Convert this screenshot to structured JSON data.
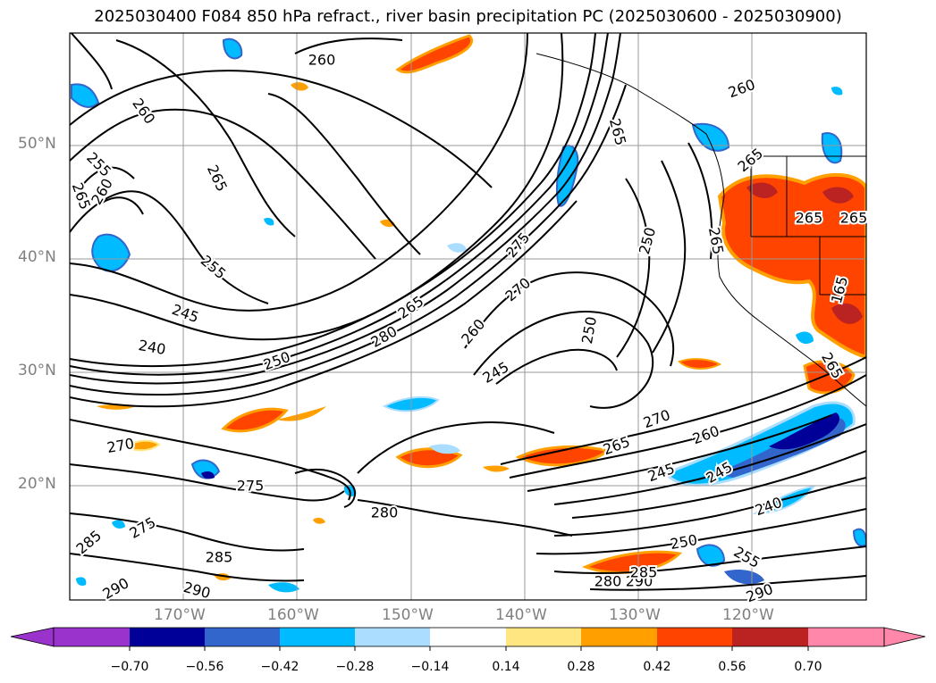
{
  "title": "2025030400 F084 850 hPa refract., river basin precipitation PC (2025030600 - 2025030900)",
  "lat_labels": [
    "50°N",
    "40°N",
    "30°N",
    "20°N"
  ],
  "lon_labels": [
    "170°W",
    "160°W",
    "150°W",
    "140°W",
    "130°W",
    "120°W"
  ],
  "contour_labels": [
    "260",
    "260",
    "255",
    "260",
    "265",
    "265",
    "265",
    "265",
    "265",
    "255",
    "245",
    "240",
    "250",
    "280",
    "265",
    "275",
    "270",
    "260",
    "245",
    "250",
    "250",
    "260",
    "270",
    "260",
    "265",
    "245",
    "245",
    "240",
    "250",
    "255",
    "270",
    "275",
    "285",
    "275",
    "285",
    "290",
    "290",
    "280",
    "290",
    "290",
    "285",
    "280",
    "265",
    "265",
    "265",
    "165"
  ],
  "colorbar": {
    "tick_labels": [
      "−0.70",
      "−0.56",
      "−0.42",
      "−0.28",
      "−0.14",
      "0.14",
      "0.28",
      "0.42",
      "0.56",
      "0.70"
    ],
    "colors": [
      "#9933cc",
      "#000099",
      "#3366cc",
      "#00bbff",
      "#aaddff",
      "#ffffff",
      "#ffe680",
      "#ffa000",
      "#ff4400",
      "#bb2222",
      "#ff88aa"
    ]
  }
}
